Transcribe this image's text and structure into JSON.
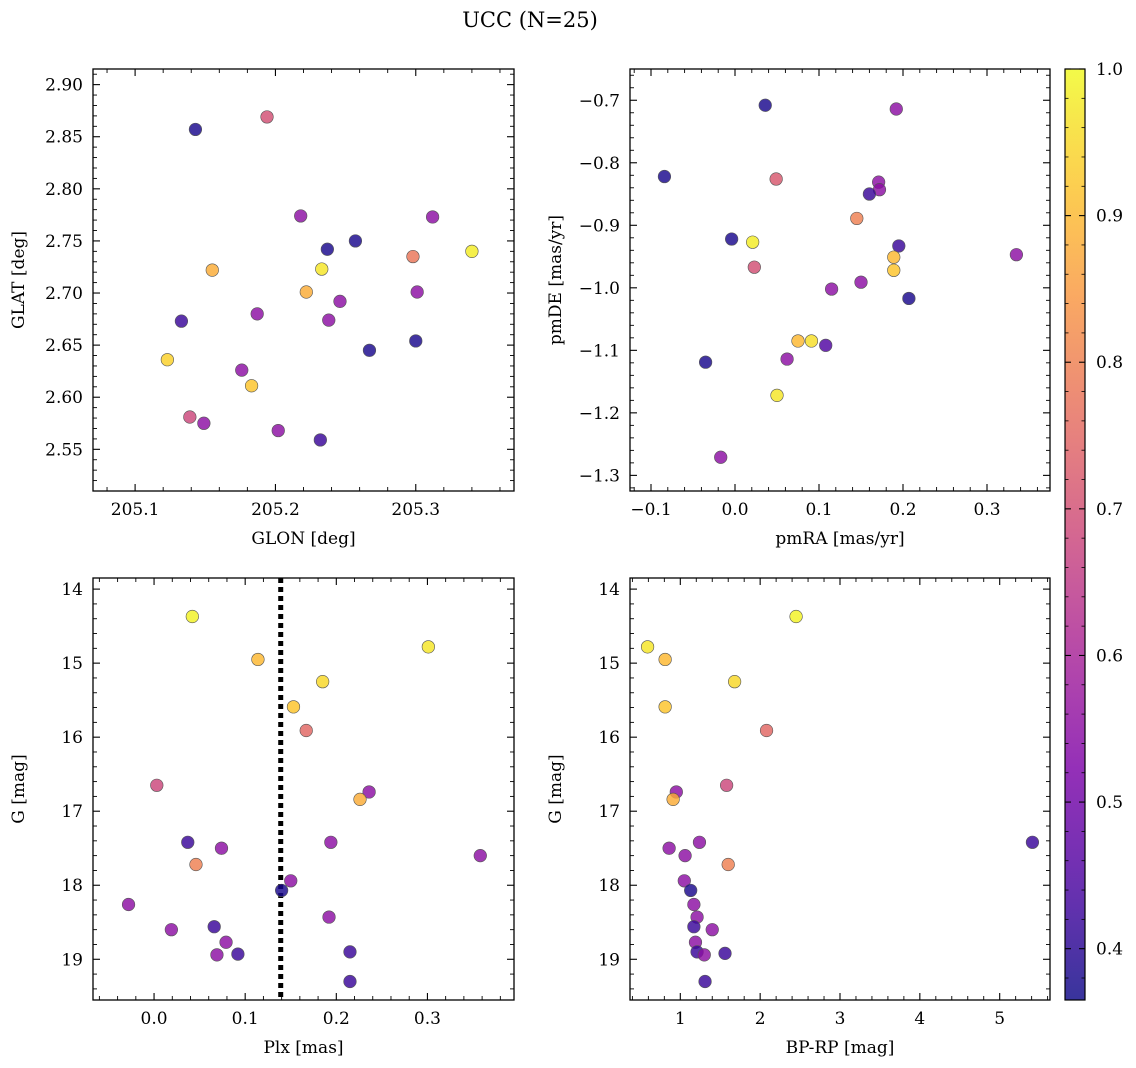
{
  "figure": {
    "title": "UCC (N=25)"
  },
  "colors": {
    "cmap": "plasma",
    "edge": "#555555",
    "membership_line": "#000000"
  },
  "colorbar": {
    "vmin": 0.365,
    "vmax": 1.0,
    "ticks": [
      0.4,
      0.5,
      0.6,
      0.7,
      0.8,
      0.9,
      1.0
    ],
    "tick_labels": [
      "0.4",
      "0.5",
      "0.6",
      "0.7",
      "0.8",
      "0.9",
      "1.0"
    ]
  },
  "chart_data": [
    {
      "type": "scatter",
      "panel": "top-left",
      "xlabel": "GLON [deg]",
      "ylabel": "GLAT [deg]",
      "xlim": [
        205.07,
        205.37
      ],
      "ylim": [
        2.51,
        2.915
      ],
      "y_inverted": false,
      "xticks": [
        205.1,
        205.2,
        205.3
      ],
      "xtick_labels": [
        "205.1",
        "205.2",
        "205.3"
      ],
      "yticks": [
        2.55,
        2.6,
        2.65,
        2.7,
        2.75,
        2.8,
        2.85,
        2.9
      ],
      "ytick_labels": [
        "2.55",
        "2.60",
        "2.65",
        "2.70",
        "2.75",
        "2.80",
        "2.85",
        "2.90"
      ],
      "points": [
        {
          "x": 205.143,
          "y": 2.857,
          "c": 0.38
        },
        {
          "x": 205.194,
          "y": 2.869,
          "c": 0.7
        },
        {
          "x": 205.218,
          "y": 2.774,
          "c": 0.55
        },
        {
          "x": 205.312,
          "y": 2.773,
          "c": 0.55
        },
        {
          "x": 205.237,
          "y": 2.742,
          "c": 0.38
        },
        {
          "x": 205.257,
          "y": 2.75,
          "c": 0.38
        },
        {
          "x": 205.298,
          "y": 2.735,
          "c": 0.78
        },
        {
          "x": 205.34,
          "y": 2.74,
          "c": 0.98
        },
        {
          "x": 205.155,
          "y": 2.722,
          "c": 0.88
        },
        {
          "x": 205.233,
          "y": 2.723,
          "c": 0.97
        },
        {
          "x": 205.222,
          "y": 2.701,
          "c": 0.88
        },
        {
          "x": 205.301,
          "y": 2.701,
          "c": 0.55
        },
        {
          "x": 205.246,
          "y": 2.692,
          "c": 0.55
        },
        {
          "x": 205.187,
          "y": 2.68,
          "c": 0.55
        },
        {
          "x": 205.133,
          "y": 2.673,
          "c": 0.42
        },
        {
          "x": 205.238,
          "y": 2.674,
          "c": 0.55
        },
        {
          "x": 205.267,
          "y": 2.645,
          "c": 0.38
        },
        {
          "x": 205.3,
          "y": 2.654,
          "c": 0.38
        },
        {
          "x": 205.123,
          "y": 2.636,
          "c": 0.94
        },
        {
          "x": 205.176,
          "y": 2.626,
          "c": 0.55
        },
        {
          "x": 205.183,
          "y": 2.611,
          "c": 0.92
        },
        {
          "x": 205.139,
          "y": 2.581,
          "c": 0.68
        },
        {
          "x": 205.149,
          "y": 2.575,
          "c": 0.55
        },
        {
          "x": 205.202,
          "y": 2.568,
          "c": 0.55
        },
        {
          "x": 205.232,
          "y": 2.559,
          "c": 0.42
        }
      ]
    },
    {
      "type": "scatter",
      "panel": "top-right",
      "xlabel": "pmRA [mas/yr]",
      "ylabel": "pmDE [mas/yr]",
      "xlim": [
        -0.125,
        0.375
      ],
      "ylim": [
        -1.325,
        -0.65
      ],
      "y_inverted": false,
      "xticks": [
        -0.1,
        0.0,
        0.1,
        0.2,
        0.3
      ],
      "xtick_labels": [
        "−0.1",
        "0.0",
        "0.1",
        "0.2",
        "0.3"
      ],
      "yticks": [
        -1.3,
        -1.2,
        -1.1,
        -1.0,
        -0.9,
        -0.8,
        -0.7
      ],
      "ytick_labels": [
        "−1.3",
        "−1.2",
        "−1.1",
        "−1.0",
        "−0.9",
        "−0.8",
        "−0.7"
      ],
      "points": [
        {
          "x": 0.036,
          "y": -0.708,
          "c": 0.38
        },
        {
          "x": 0.192,
          "y": -0.714,
          "c": 0.55
        },
        {
          "x": -0.084,
          "y": -0.822,
          "c": 0.38
        },
        {
          "x": 0.049,
          "y": -0.826,
          "c": 0.72
        },
        {
          "x": 0.171,
          "y": -0.831,
          "c": 0.55
        },
        {
          "x": 0.172,
          "y": -0.843,
          "c": 0.55
        },
        {
          "x": 0.16,
          "y": -0.85,
          "c": 0.42
        },
        {
          "x": 0.145,
          "y": -0.889,
          "c": 0.8
        },
        {
          "x": -0.004,
          "y": -0.922,
          "c": 0.38
        },
        {
          "x": 0.021,
          "y": -0.927,
          "c": 0.98
        },
        {
          "x": 0.195,
          "y": -0.933,
          "c": 0.42
        },
        {
          "x": 0.335,
          "y": -0.947,
          "c": 0.55
        },
        {
          "x": 0.189,
          "y": -0.951,
          "c": 0.9
        },
        {
          "x": 0.023,
          "y": -0.967,
          "c": 0.7
        },
        {
          "x": 0.189,
          "y": -0.972,
          "c": 0.92
        },
        {
          "x": 0.15,
          "y": -0.991,
          "c": 0.55
        },
        {
          "x": 0.115,
          "y": -1.002,
          "c": 0.55
        },
        {
          "x": 0.207,
          "y": -1.017,
          "c": 0.38
        },
        {
          "x": 0.075,
          "y": -1.085,
          "c": 0.9
        },
        {
          "x": 0.091,
          "y": -1.085,
          "c": 0.96
        },
        {
          "x": 0.108,
          "y": -1.092,
          "c": 0.45
        },
        {
          "x": 0.062,
          "y": -1.114,
          "c": 0.55
        },
        {
          "x": -0.035,
          "y": -1.119,
          "c": 0.38
        },
        {
          "x": 0.05,
          "y": -1.172,
          "c": 0.97
        },
        {
          "x": -0.017,
          "y": -1.271,
          "c": 0.55
        }
      ]
    },
    {
      "type": "scatter",
      "panel": "bottom-left",
      "xlabel": "Plx [mas]",
      "ylabel": "G [mag]",
      "xlim": [
        -0.067,
        0.395
      ],
      "ylim": [
        19.55,
        13.85
      ],
      "y_inverted": true,
      "xticks": [
        0.0,
        0.1,
        0.2,
        0.3
      ],
      "xtick_labels": [
        "0.0",
        "0.1",
        "0.2",
        "0.3"
      ],
      "yticks": [
        14,
        15,
        16,
        17,
        18,
        19
      ],
      "ytick_labels": [
        "14",
        "15",
        "16",
        "17",
        "18",
        "19"
      ],
      "vline": {
        "x": 0.139,
        "style": "dotted"
      },
      "points": [
        {
          "x": 0.042,
          "y": 14.37,
          "c": 0.99
        },
        {
          "x": 0.301,
          "y": 14.78,
          "c": 0.97
        },
        {
          "x": 0.114,
          "y": 14.95,
          "c": 0.9
        },
        {
          "x": 0.185,
          "y": 15.25,
          "c": 0.95
        },
        {
          "x": 0.153,
          "y": 15.59,
          "c": 0.92
        },
        {
          "x": 0.167,
          "y": 15.91,
          "c": 0.75
        },
        {
          "x": 0.003,
          "y": 16.65,
          "c": 0.68
        },
        {
          "x": 0.236,
          "y": 16.74,
          "c": 0.55
        },
        {
          "x": 0.226,
          "y": 16.84,
          "c": 0.88
        },
        {
          "x": 0.037,
          "y": 17.42,
          "c": 0.42
        },
        {
          "x": 0.194,
          "y": 17.42,
          "c": 0.55
        },
        {
          "x": 0.074,
          "y": 17.5,
          "c": 0.55
        },
        {
          "x": 0.358,
          "y": 17.6,
          "c": 0.55
        },
        {
          "x": 0.046,
          "y": 17.72,
          "c": 0.8
        },
        {
          "x": 0.15,
          "y": 17.94,
          "c": 0.55
        },
        {
          "x": 0.14,
          "y": 18.07,
          "c": 0.38
        },
        {
          "x": -0.028,
          "y": 18.26,
          "c": 0.55
        },
        {
          "x": 0.192,
          "y": 18.43,
          "c": 0.55
        },
        {
          "x": 0.066,
          "y": 18.56,
          "c": 0.42
        },
        {
          "x": 0.019,
          "y": 18.6,
          "c": 0.55
        },
        {
          "x": 0.079,
          "y": 18.77,
          "c": 0.55
        },
        {
          "x": 0.215,
          "y": 18.9,
          "c": 0.42
        },
        {
          "x": 0.069,
          "y": 18.94,
          "c": 0.55
        },
        {
          "x": 0.092,
          "y": 18.93,
          "c": 0.42
        },
        {
          "x": 0.215,
          "y": 19.3,
          "c": 0.42
        }
      ]
    },
    {
      "type": "scatter",
      "panel": "bottom-right",
      "xlabel": "BP-RP [mag]",
      "ylabel": "G [mag]",
      "xlim": [
        0.37,
        5.63
      ],
      "ylim": [
        19.55,
        13.85
      ],
      "y_inverted": true,
      "xticks": [
        1,
        2,
        3,
        4,
        5
      ],
      "xtick_labels": [
        "1",
        "2",
        "3",
        "4",
        "5"
      ],
      "yticks": [
        14,
        15,
        16,
        17,
        18,
        19
      ],
      "ytick_labels": [
        "14",
        "15",
        "16",
        "17",
        "18",
        "19"
      ],
      "points": [
        {
          "x": 2.45,
          "y": 14.37,
          "c": 0.99
        },
        {
          "x": 0.59,
          "y": 14.78,
          "c": 0.97
        },
        {
          "x": 0.81,
          "y": 14.95,
          "c": 0.9
        },
        {
          "x": 1.68,
          "y": 15.25,
          "c": 0.95
        },
        {
          "x": 0.81,
          "y": 15.59,
          "c": 0.92
        },
        {
          "x": 2.08,
          "y": 15.91,
          "c": 0.75
        },
        {
          "x": 1.58,
          "y": 16.65,
          "c": 0.68
        },
        {
          "x": 0.95,
          "y": 16.74,
          "c": 0.55
        },
        {
          "x": 0.91,
          "y": 16.84,
          "c": 0.88
        },
        {
          "x": 5.41,
          "y": 17.42,
          "c": 0.42
        },
        {
          "x": 1.24,
          "y": 17.42,
          "c": 0.55
        },
        {
          "x": 0.86,
          "y": 17.5,
          "c": 0.55
        },
        {
          "x": 1.06,
          "y": 17.6,
          "c": 0.55
        },
        {
          "x": 1.6,
          "y": 17.72,
          "c": 0.8
        },
        {
          "x": 1.05,
          "y": 17.94,
          "c": 0.55
        },
        {
          "x": 1.13,
          "y": 18.07,
          "c": 0.38
        },
        {
          "x": 1.17,
          "y": 18.26,
          "c": 0.55
        },
        {
          "x": 1.21,
          "y": 18.43,
          "c": 0.55
        },
        {
          "x": 1.17,
          "y": 18.56,
          "c": 0.42
        },
        {
          "x": 1.4,
          "y": 18.6,
          "c": 0.55
        },
        {
          "x": 1.19,
          "y": 18.77,
          "c": 0.55
        },
        {
          "x": 1.56,
          "y": 18.92,
          "c": 0.42
        },
        {
          "x": 1.21,
          "y": 18.9,
          "c": 0.42
        },
        {
          "x": 1.3,
          "y": 18.94,
          "c": 0.55
        },
        {
          "x": 1.31,
          "y": 19.3,
          "c": 0.42
        }
      ]
    }
  ]
}
